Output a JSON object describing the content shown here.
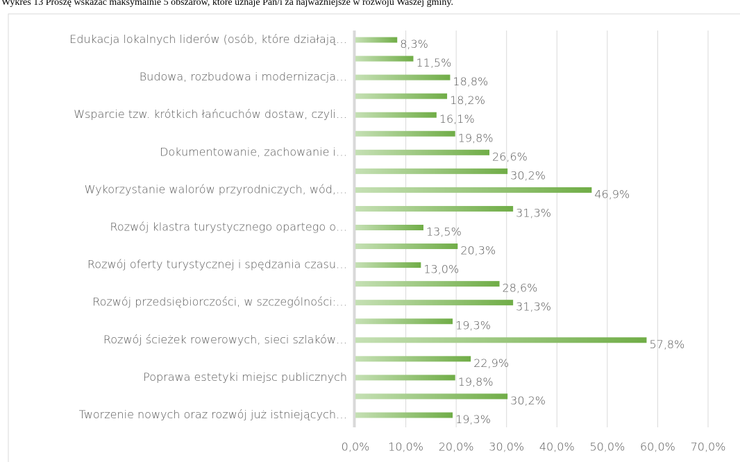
{
  "chart_data": {
    "type": "barh",
    "title": "Wykres 13 Proszę wskazać maksymalnie 5 obszarów, które uznaje Pan/i za najważniejsze w rozwoju Waszej gminy.",
    "categories": [
      "Edukacja lokalnych liderów (osób, które działają…",
      null,
      "Budowa, rozbudowa i modernizacja…",
      null,
      "Wsparcie tzw. krótkich łańcuchów dostaw, czyli…",
      null,
      "Dokumentowanie, zachowanie i…",
      null,
      "Wykorzystanie walorów przyrodniczych, wód,…",
      null,
      "Rozwój klastra turystycznego opartego o…",
      null,
      "Rozwój oferty turystycznej i spędzania czasu…",
      null,
      "Rozwój przedsiębiorczości, w szczególności:…",
      null,
      "Rozwój ścieżek rowerowych, sieci szlaków…",
      null,
      "Poprawa estetyki miejsc publicznych",
      null,
      "Tworzenie nowych oraz rozwój już istniejących…"
    ],
    "values": [
      8.3,
      11.5,
      18.8,
      18.2,
      16.1,
      19.8,
      26.6,
      30.2,
      46.9,
      31.3,
      13.5,
      20.3,
      13.0,
      28.6,
      31.3,
      19.3,
      57.8,
      22.9,
      19.8,
      30.2,
      19.3
    ],
    "value_labels": [
      "8,3%",
      "11,5%",
      "18,8%",
      "18,2%",
      "16,1%",
      "19,8%",
      "26,6%",
      "30,2%",
      "46,9%",
      "31,3%",
      "13,5%",
      "20,3%",
      "13,0%",
      "28,6%",
      "31,3%",
      "19,3%",
      "57,8%",
      "22,9%",
      "19,8%",
      "30,2%",
      "19,3%"
    ],
    "color": "#70ad47",
    "xlim": [
      0,
      70
    ],
    "xticks": [
      {
        "value": 0,
        "label": "0,0%"
      },
      {
        "value": 10,
        "label": "10,0%"
      },
      {
        "value": 20,
        "label": "20,0%"
      },
      {
        "value": 30,
        "label": "30,0%"
      },
      {
        "value": 40,
        "label": "40,0%"
      },
      {
        "value": 50,
        "label": "50,0%"
      },
      {
        "value": 60,
        "label": "60,0%"
      },
      {
        "value": 70,
        "label": "70,0%"
      }
    ],
    "grid": true
  }
}
